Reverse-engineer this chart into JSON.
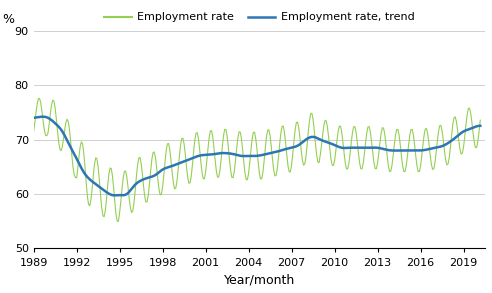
{
  "ylabel": "%",
  "xlabel": "Year/month",
  "ylim": [
    50,
    90
  ],
  "yticks": [
    50,
    60,
    70,
    80,
    90
  ],
  "xlim_start": 1989.0,
  "xlim_end": 2020.5,
  "xticks": [
    1989,
    1992,
    1995,
    1998,
    2001,
    2004,
    2007,
    2010,
    2013,
    2016,
    2019
  ],
  "line_color": "#2e75b6",
  "seasonal_color": "#92d050",
  "figsize": [
    4.92,
    2.93
  ],
  "dpi": 100,
  "trend_knots_year": [
    1989.0,
    1989.5,
    1990.0,
    1990.5,
    1991.0,
    1991.5,
    1992.0,
    1992.5,
    1993.0,
    1993.5,
    1994.0,
    1994.5,
    1995.0,
    1995.5,
    1996.0,
    1996.5,
    1997.0,
    1997.5,
    1998.0,
    1998.5,
    1999.0,
    1999.5,
    2000.0,
    2000.5,
    2001.0,
    2001.5,
    2002.0,
    2002.5,
    2003.0,
    2003.5,
    2004.0,
    2004.5,
    2005.0,
    2005.5,
    2006.0,
    2006.5,
    2007.0,
    2007.5,
    2008.0,
    2008.5,
    2009.0,
    2009.5,
    2010.0,
    2010.5,
    2011.0,
    2011.5,
    2012.0,
    2012.5,
    2013.0,
    2013.5,
    2014.0,
    2014.5,
    2015.0,
    2015.5,
    2016.0,
    2016.5,
    2017.0,
    2017.5,
    2018.0,
    2018.5,
    2019.0,
    2019.5,
    2020.0,
    2020.25
  ],
  "trend_knots_val": [
    74.0,
    74.2,
    74.0,
    73.0,
    71.5,
    69.0,
    66.5,
    64.0,
    62.5,
    61.5,
    60.5,
    59.8,
    59.8,
    60.0,
    61.5,
    62.5,
    63.0,
    63.5,
    64.5,
    65.0,
    65.5,
    66.0,
    66.5,
    67.0,
    67.2,
    67.3,
    67.5,
    67.5,
    67.3,
    67.0,
    67.0,
    67.0,
    67.2,
    67.5,
    67.8,
    68.2,
    68.5,
    69.0,
    70.0,
    70.5,
    70.0,
    69.5,
    69.0,
    68.5,
    68.5,
    68.5,
    68.5,
    68.5,
    68.5,
    68.2,
    68.0,
    68.0,
    68.0,
    68.0,
    68.0,
    68.2,
    68.5,
    68.8,
    69.5,
    70.5,
    71.5,
    72.0,
    72.5,
    72.5
  ],
  "seasonal_amps": {
    "before_1990": 3.5,
    "before_1992": 4.0,
    "before_1995": 5.0,
    "before_2000": 4.5,
    "before_2009": 4.5,
    "after": 4.0
  }
}
